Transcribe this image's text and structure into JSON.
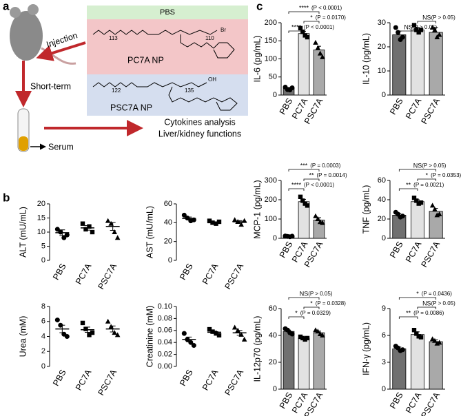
{
  "diagram": {
    "panel_labels": [
      "a",
      "b",
      "c"
    ],
    "injection": "Injection",
    "short_term": "Short-term",
    "serum": "Serum",
    "boxes": [
      "PBS",
      "PC7A NP",
      "PSC7A NP"
    ],
    "outputs": [
      "Cytokines analysis",
      "Liver/kidney functions"
    ],
    "structure_labels": [
      "113",
      "110",
      "Br",
      "122",
      "135",
      "OH"
    ]
  },
  "chart_data": [
    {
      "type": "dotplot",
      "ylabel": "ALT (mU/mL)",
      "categories": [
        "PBS",
        "PC7A",
        "PSC7A"
      ],
      "markers": [
        "circle",
        "square",
        "triangle"
      ],
      "values": [
        9.8,
        11.5,
        12
      ],
      "errors": [
        1,
        0.8,
        1.4
      ],
      "points": [
        [
          11,
          10,
          8,
          9
        ],
        [
          13,
          11,
          12,
          10
        ],
        [
          14,
          13,
          10,
          8
        ]
      ],
      "ylim": [
        0,
        20
      ],
      "yticks": [
        0,
        5,
        10,
        15,
        20
      ]
    },
    {
      "type": "dotplot",
      "ylabel": "AST (mU/mL)",
      "categories": [
        "PBS",
        "PC7A",
        "PSC7A"
      ],
      "markers": [
        "circle",
        "square",
        "triangle"
      ],
      "values": [
        44.5,
        40,
        41
      ],
      "errors": [
        1.5,
        0.8,
        1.2
      ],
      "points": [
        [
          48,
          45,
          42,
          43
        ],
        [
          42,
          40,
          39,
          41
        ],
        [
          43,
          41,
          38,
          42
        ]
      ],
      "ylim": [
        0,
        60
      ],
      "yticks": [
        0,
        20,
        40,
        60
      ]
    },
    {
      "type": "dotplot",
      "ylabel": "Urea (mM)",
      "categories": [
        "PBS",
        "PC7A",
        "PSC7A"
      ],
      "markers": [
        "circle",
        "square",
        "triangle"
      ],
      "values": [
        5,
        4.9,
        5
      ],
      "errors": [
        0.5,
        0.35,
        0.4
      ],
      "points": [
        [
          6.2,
          5.5,
          4.3,
          4
        ],
        [
          5.8,
          5,
          4.2,
          4.5
        ],
        [
          6,
          5.3,
          4.5,
          4.2
        ]
      ],
      "ylim": [
        0,
        8
      ],
      "yticks": [
        0,
        2,
        4,
        6,
        8
      ]
    },
    {
      "type": "dotplot",
      "ylabel": "Creatinine (mM)",
      "categories": [
        "PBS",
        "PC7A",
        "PSC7A"
      ],
      "markers": [
        "circle",
        "square",
        "triangle"
      ],
      "values": [
        0.045,
        0.057,
        0.056
      ],
      "errors": [
        0.004,
        0.002,
        0.004
      ],
      "points": [
        [
          0.055,
          0.045,
          0.04,
          0.035
        ],
        [
          0.062,
          0.058,
          0.055,
          0.052
        ],
        [
          0.065,
          0.06,
          0.053,
          0.045
        ]
      ],
      "ylim": [
        0,
        0.1
      ],
      "yticks": [
        {
          "value": 0,
          "label": "0.00"
        },
        0.02,
        0.04,
        0.06,
        0.08,
        {
          "value": 0.1,
          "label": "0.10"
        }
      ]
    },
    {
      "type": "bar",
      "ylabel": "IL-6 (pg/mL)",
      "categories": [
        "PBS",
        "PC7A",
        "PSC7A"
      ],
      "markers": [
        "circle",
        "square",
        "triangle"
      ],
      "colors": [
        "#707070",
        "#e2e2e2",
        "#a9a9a9"
      ],
      "values": [
        18,
        170,
        125
      ],
      "errors": [
        3,
        6,
        10
      ],
      "points": [
        [
          22,
          15,
          14,
          20
        ],
        [
          185,
          175,
          165,
          160
        ],
        [
          145,
          130,
          115,
          105
        ]
      ],
      "ylim": [
        0,
        200
      ],
      "yticks": [
        0,
        50,
        100,
        150,
        200
      ],
      "annotations": [
        {
          "from": 0,
          "to": 2,
          "sig": "****",
          "p": "(P < 0.0001)"
        },
        {
          "from": 1,
          "to": 2,
          "sig": "*",
          "p": "(P = 0.0170)"
        },
        {
          "from": 0,
          "to": 1,
          "sig": "****",
          "p": "(P < 0.0001)"
        }
      ]
    },
    {
      "type": "bar",
      "ylabel": "IL-10 (pg/mL)",
      "categories": [
        "PBS",
        "PC7A",
        "PSC7A"
      ],
      "markers": [
        "circle",
        "square",
        "triangle"
      ],
      "colors": [
        "#707070",
        "#e2e2e2",
        "#a9a9a9"
      ],
      "values": [
        25,
        27,
        26
      ],
      "errors": [
        1.5,
        1,
        2
      ],
      "points": [
        [
          28,
          26,
          23,
          24
        ],
        [
          29,
          27,
          26,
          27
        ],
        [
          28,
          27,
          24,
          25
        ]
      ],
      "ylim": [
        0,
        30
      ],
      "yticks": [
        0,
        10,
        20,
        30
      ],
      "annotations": [
        {
          "from": 1,
          "to": 2,
          "sig": "NS",
          "p": "(P > 0.05)"
        },
        {
          "from": 0,
          "to": 1,
          "sig": "NS",
          "p": "(P > 0.05)"
        }
      ]
    },
    {
      "type": "bar",
      "ylabel": "MCP-1 (pg/mL)",
      "categories": [
        "PBS",
        "PC7A",
        "PSC7A"
      ],
      "markers": [
        "circle",
        "square",
        "triangle"
      ],
      "colors": [
        "#707070",
        "#e2e2e2",
        "#a9a9a9"
      ],
      "values": [
        10,
        190,
        95
      ],
      "errors": [
        2,
        12,
        12
      ],
      "points": [
        [
          12,
          10,
          8,
          11
        ],
        [
          215,
          195,
          180,
          170
        ],
        [
          115,
          100,
          85,
          80
        ]
      ],
      "ylim": [
        0,
        300
      ],
      "yticks": [
        0,
        100,
        200,
        300
      ],
      "annotations": [
        {
          "from": 0,
          "to": 2,
          "sig": "***",
          "p": "(P = 0.0003)"
        },
        {
          "from": 1,
          "to": 2,
          "sig": "**",
          "p": "(P = 0.0014)"
        },
        {
          "from": 0,
          "to": 1,
          "sig": "****",
          "p": "(P < 0.0001)"
        }
      ]
    },
    {
      "type": "bar",
      "ylabel": "TNF (pg/mL)",
      "categories": [
        "PBS",
        "PC7A",
        "PSC7A"
      ],
      "markers": [
        "circle",
        "square",
        "triangle"
      ],
      "colors": [
        "#707070",
        "#e2e2e2",
        "#a9a9a9"
      ],
      "values": [
        24,
        38,
        28
      ],
      "errors": [
        2,
        2,
        3
      ],
      "points": [
        [
          27,
          25,
          22,
          23
        ],
        [
          42,
          39,
          36,
          37
        ],
        [
          34,
          30,
          24,
          25
        ]
      ],
      "ylim": [
        0,
        60
      ],
      "yticks": [
        0,
        20,
        40,
        60
      ],
      "annotations": [
        {
          "from": 0,
          "to": 2,
          "sig": "NS",
          "p": "(P > 0.05)"
        },
        {
          "from": 1,
          "to": 2,
          "sig": "*",
          "p": "(P = 0.0353)"
        },
        {
          "from": 0,
          "to": 1,
          "sig": "**",
          "p": "(P = 0.0021)"
        }
      ]
    },
    {
      "type": "bar",
      "ylabel": "IL-12p70 (pg/mL)",
      "categories": [
        "PBS",
        "PC7A",
        "PSC7A"
      ],
      "markers": [
        "circle",
        "square",
        "triangle"
      ],
      "colors": [
        "#707070",
        "#e2e2e2",
        "#a9a9a9"
      ],
      "values": [
        43,
        38,
        42
      ],
      "errors": [
        1,
        0.8,
        1.2
      ],
      "points": [
        [
          45,
          44,
          42,
          41
        ],
        [
          39,
          38,
          37,
          38
        ],
        [
          44,
          43,
          41,
          40
        ]
      ],
      "ylim": [
        0,
        60
      ],
      "yticks": [
        0,
        20,
        40,
        60
      ],
      "annotations": [
        {
          "from": 0,
          "to": 2,
          "sig": "NS",
          "p": "(P > 0.05)"
        },
        {
          "from": 1,
          "to": 2,
          "sig": "*",
          "p": "(P = 0.0328)"
        },
        {
          "from": 0,
          "to": 1,
          "sig": "*",
          "p": "(P = 0.0329)"
        }
      ]
    },
    {
      "type": "bar",
      "ylabel": "IFN-γ (pg/mL)",
      "categories": [
        "PBS",
        "PC7A",
        "PSC7A"
      ],
      "markers": [
        "circle",
        "square",
        "triangle"
      ],
      "colors": [
        "#707070",
        "#e2e2e2",
        "#a9a9a9"
      ],
      "values": [
        4.5,
        6.1,
        5.3
      ],
      "errors": [
        0.2,
        0.3,
        0.2
      ],
      "points": [
        [
          4.8,
          4.6,
          4.3,
          4.4
        ],
        [
          6.6,
          6.2,
          5.9,
          5.8
        ],
        [
          5.6,
          5.4,
          5.1,
          5.2
        ]
      ],
      "ylim": [
        0,
        9
      ],
      "yticks": [
        0,
        3,
        6,
        9
      ],
      "annotations": [
        {
          "from": 0,
          "to": 2,
          "sig": "*",
          "p": "(P = 0.0436)"
        },
        {
          "from": 1,
          "to": 2,
          "sig": "NS",
          "p": "(P > 0.05)"
        },
        {
          "from": 0,
          "to": 1,
          "sig": "**",
          "p": "(P = 0.0086)"
        }
      ]
    }
  ]
}
